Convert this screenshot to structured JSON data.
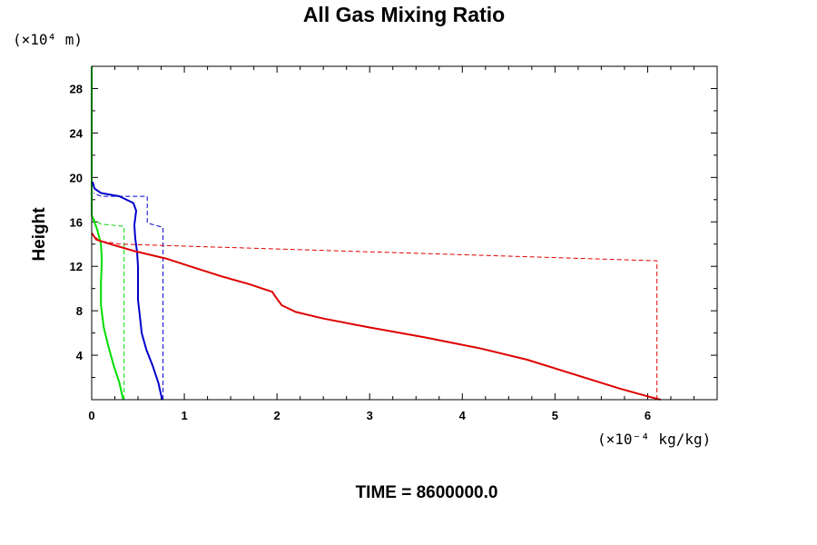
{
  "chart_data": {
    "type": "line",
    "title": "All Gas Mixing Ratio",
    "ylabel": "Height",
    "y_unit_label": "(×10⁴ m)",
    "x_unit_label": "(×10⁻⁴ kg/kg)",
    "xlim": [
      0,
      6.75
    ],
    "ylim": [
      0,
      30
    ],
    "x_ticks": [
      0,
      1,
      2,
      3,
      4,
      5,
      6
    ],
    "y_ticks": [
      4,
      8,
      12,
      16,
      20,
      24,
      28
    ],
    "x_minor_step": 0.25,
    "y_minor_step": 2,
    "grid": false,
    "series": [
      {
        "color": "#00dd00",
        "style": "solid",
        "points": [
          [
            0.34,
            0
          ],
          [
            0.3,
            1.5
          ],
          [
            0.24,
            3
          ],
          [
            0.18,
            4.8
          ],
          [
            0.13,
            6.5
          ],
          [
            0.1,
            8.5
          ],
          [
            0.1,
            10.5
          ],
          [
            0.11,
            12.5
          ],
          [
            0.1,
            14
          ],
          [
            0.06,
            15.3
          ],
          [
            0.02,
            16.2
          ],
          [
            0.0,
            16.6
          ],
          [
            0.0,
            30
          ]
        ]
      },
      {
        "color": "#00dd00",
        "style": "dashed",
        "points": [
          [
            0.35,
            0
          ],
          [
            0.35,
            15.6
          ],
          [
            0.1,
            15.8
          ],
          [
            0.04,
            16.1
          ],
          [
            0.0,
            16.5
          ]
        ]
      },
      {
        "color": "#0000cc",
        "style": "solid",
        "points": [
          [
            0.76,
            0
          ],
          [
            0.72,
            1.5
          ],
          [
            0.66,
            3
          ],
          [
            0.59,
            4.5
          ],
          [
            0.54,
            6
          ],
          [
            0.52,
            7.5
          ],
          [
            0.5,
            9
          ],
          [
            0.5,
            10.5
          ],
          [
            0.5,
            12
          ],
          [
            0.49,
            13.3
          ],
          [
            0.47,
            14.5
          ],
          [
            0.46,
            15.7
          ],
          [
            0.48,
            17
          ],
          [
            0.45,
            17.7
          ],
          [
            0.3,
            18.3
          ],
          [
            0.1,
            18.6
          ],
          [
            0.03,
            19
          ],
          [
            0.01,
            19.6
          ]
        ]
      },
      {
        "color": "#0000cc",
        "style": "dashed",
        "points": [
          [
            0.77,
            0
          ],
          [
            0.77,
            15.5
          ],
          [
            0.6,
            15.9
          ],
          [
            0.6,
            18.3
          ],
          [
            0.1,
            18.3
          ],
          [
            0.02,
            18.6
          ]
        ]
      },
      {
        "color": "#dd0000",
        "style": "solid",
        "points": [
          [
            6.14,
            0
          ],
          [
            6.0,
            0.3
          ],
          [
            5.7,
            1.0
          ],
          [
            5.2,
            2.3
          ],
          [
            4.7,
            3.6
          ],
          [
            4.2,
            4.6
          ],
          [
            3.6,
            5.6
          ],
          [
            3.0,
            6.5
          ],
          [
            2.5,
            7.3
          ],
          [
            2.2,
            7.9
          ],
          [
            2.05,
            8.5
          ],
          [
            1.98,
            9.3
          ],
          [
            1.95,
            9.7
          ],
          [
            1.7,
            10.4
          ],
          [
            1.4,
            11.1
          ],
          [
            1.1,
            11.9
          ],
          [
            0.8,
            12.7
          ],
          [
            0.45,
            13.4
          ],
          [
            0.2,
            14.0
          ],
          [
            0.05,
            14.4
          ],
          [
            0.0,
            15.0
          ]
        ]
      },
      {
        "color": "#dd0000",
        "style": "dashed",
        "points": [
          [
            6.1,
            0
          ],
          [
            6.1,
            12.5
          ],
          [
            0.3,
            14.0
          ],
          [
            0.08,
            14.3
          ],
          [
            0.0,
            15.0
          ]
        ]
      }
    ]
  },
  "footer": {
    "time_label": "TIME = ",
    "time_value": "8600000.0"
  }
}
